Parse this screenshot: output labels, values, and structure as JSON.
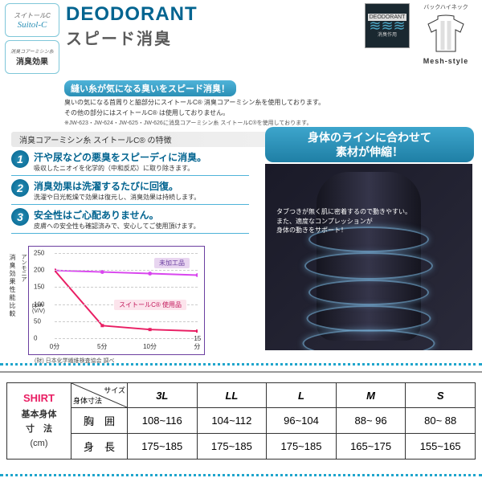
{
  "badges": {
    "b1": {
      "small": "スイトールC",
      "script": "Suitol-C"
    },
    "b2": {
      "small": "消臭コアーミシン糸",
      "label": "消臭効果"
    }
  },
  "title": {
    "main": "DEODORANT",
    "sub": "スピード消臭"
  },
  "deod_icon": {
    "label": "DEODORANT",
    "bottom": "消臭作用"
  },
  "mesh": {
    "label": "バックハイネック",
    "style": "Mesh-style"
  },
  "desc": {
    "title": "縫い糸が気になる臭いをスピード消臭！",
    "line1": "臭いの気になる首周りと脇部分にスイトールC® 消臭コアーミシン糸を使用しております。",
    "line2": "その他の部分にはスイトールC® は使用しておりません。",
    "note": "※JW-623・JW-624・JW-625・JW-626に消臭コアーミシン糸 スイトールC®を使用しております。"
  },
  "features": {
    "header": "消臭コアーミシン糸 スイトールC® の特徴",
    "items": [
      {
        "n": "1",
        "main": "汗や尿などの悪臭をスピーディに消臭。",
        "sub": "吸収したニオイを化学的（中和反応）に取り除きます。"
      },
      {
        "n": "2",
        "main": "消臭効果は洗濯するたびに回復。",
        "sub": "洗濯や日光乾燥で効果は復元し、消臭効果は持続します。"
      },
      {
        "n": "3",
        "main": "安全性はご心配ありません。",
        "sub": "皮膚への安全性も確認済みで、安心してご使用頂けます。"
      }
    ]
  },
  "body": {
    "title1": "身体のラインに合わせて",
    "title2": "素材が伸縮！",
    "desc1": "タブつきが無く肌に密着するので動きやすい。",
    "desc2": "また、適度なコンプレッションが",
    "desc3": "身体の動きをサポート！"
  },
  "chart": {
    "ylabel1": "消臭効果性能比較",
    "ylabel2": "アンモニア",
    "ppm": "ppm\n(V/V)",
    "yticks": [
      "250",
      "200",
      "150",
      "100",
      "50",
      "0"
    ],
    "xticks": [
      "0分",
      "5分",
      "10分",
      "15分"
    ],
    "legend1": "未加工品",
    "legend2": "スイトールC® 使用品",
    "note": "(財) 日本化学繊維検査協会 調べ",
    "line1_color": "#d946ef",
    "line2_color": "#e91e63",
    "border_color": "#6b3fa0"
  },
  "table": {
    "shirt": "SHIRT",
    "shirt_sub1": "基本身体",
    "shirt_sub2": "寸　法",
    "shirt_unit": "(cm)",
    "h_size": "サイズ",
    "h_body": "身体寸法",
    "sizes": [
      "3L",
      "LL",
      "L",
      "M",
      "S"
    ],
    "rows": [
      {
        "label": "胸　囲",
        "vals": [
          "108~116",
          "104~112",
          "96~104",
          "88~ 96",
          "80~ 88"
        ]
      },
      {
        "label": "身　長",
        "vals": [
          "175~185",
          "175~185",
          "175~185",
          "165~175",
          "155~165"
        ]
      }
    ]
  }
}
